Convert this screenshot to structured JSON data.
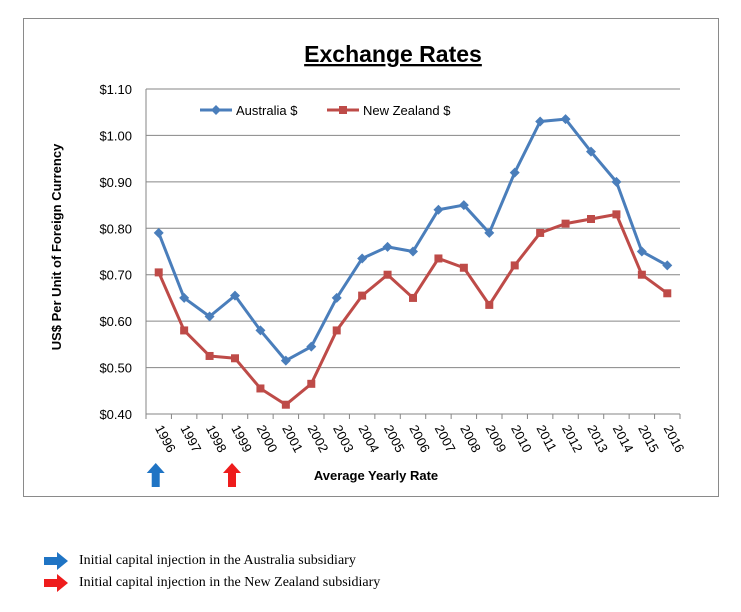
{
  "chart_data": {
    "type": "line",
    "title": "Exchange Rates",
    "xlabel": "Average Yearly Rate",
    "ylabel": "US$ Per Unit of Foreign Currency",
    "ylim": [
      0.4,
      1.1
    ],
    "yticks": [
      "$0.40",
      "$0.50",
      "$0.60",
      "$0.70",
      "$0.80",
      "$0.90",
      "$1.00",
      "$1.10"
    ],
    "categories": [
      "1996",
      "1997",
      "1998",
      "1999",
      "2000",
      "2001",
      "2002",
      "2003",
      "2004",
      "2005",
      "2006",
      "2007",
      "2008",
      "2009",
      "2010",
      "2011",
      "2012",
      "2013",
      "2014",
      "2015",
      "2016"
    ],
    "grid": true,
    "legend_position": "top-left",
    "series": [
      {
        "name": "Australia $",
        "color": "#4a7ebb",
        "marker": "diamond",
        "values": [
          0.79,
          0.65,
          0.61,
          0.655,
          0.58,
          0.515,
          0.545,
          0.65,
          0.735,
          0.76,
          0.75,
          0.84,
          0.85,
          0.79,
          0.92,
          1.03,
          1.035,
          0.965,
          0.9,
          0.75,
          0.72
        ]
      },
      {
        "name": "New Zealand $",
        "color": "#be4b48",
        "marker": "square",
        "values": [
          0.705,
          0.58,
          0.525,
          0.52,
          0.455,
          0.42,
          0.465,
          0.58,
          0.655,
          0.7,
          0.65,
          0.735,
          0.715,
          0.635,
          0.72,
          0.79,
          0.81,
          0.82,
          0.83,
          0.7,
          0.66
        ]
      }
    ],
    "annotations": [
      {
        "year": "1996",
        "color": "#1f74c4",
        "direction": "up"
      },
      {
        "year": "1999",
        "color": "#ee1c1c",
        "direction": "up"
      }
    ]
  },
  "notes": [
    {
      "text": "Initial capital injection in the Australia subsidiary",
      "color": "#1f74c4"
    },
    {
      "text": "Initial capital injection in the New Zealand subsidiary",
      "color": "#ee1c1c"
    }
  ]
}
